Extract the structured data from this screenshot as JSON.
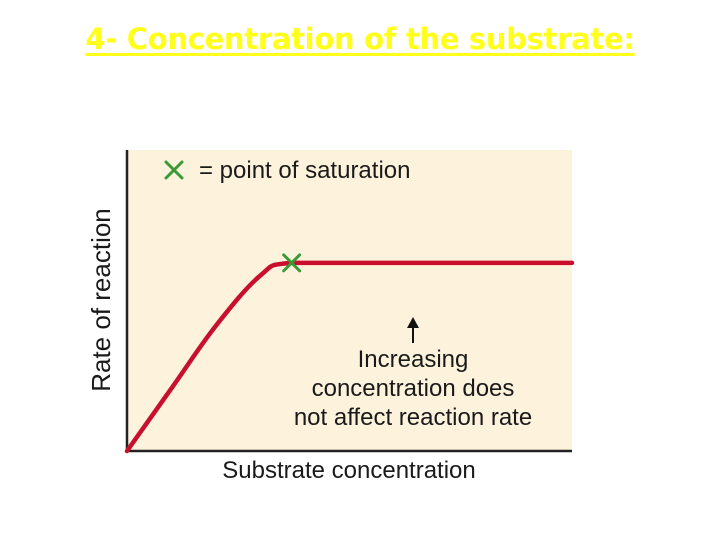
{
  "slide": {
    "title": "4- Concentration of the substrate:",
    "title_color": "#ffff1a"
  },
  "chart_data": {
    "type": "line",
    "title": "",
    "xlabel": "Substrate concentration",
    "ylabel": "Rate of reaction",
    "x_ticks": false,
    "y_ticks": false,
    "grid": false,
    "background_color": "#fdf3dd",
    "series": [
      {
        "color": "#c8102e",
        "x": [
          0,
          0.1,
          0.2,
          0.3,
          0.37,
          0.6,
          0.8,
          1.0
        ],
        "y": [
          0,
          0.25,
          0.5,
          0.7,
          0.75,
          0.75,
          0.75,
          0.75
        ]
      }
    ],
    "xlim": [
      0,
      1
    ],
    "ylim": [
      0,
      1.2
    ],
    "legend": {
      "position": "top-left",
      "marker": "x",
      "marker_color": "#3a9a35",
      "text": "= point of saturation"
    },
    "saturation_point": {
      "x": 0.37,
      "y": 0.75
    },
    "annotation": {
      "lines": [
        "Increasing",
        "concentration does",
        "not affect reaction rate"
      ],
      "arrow_target": {
        "x": 0.65,
        "y": 0.75
      }
    }
  }
}
